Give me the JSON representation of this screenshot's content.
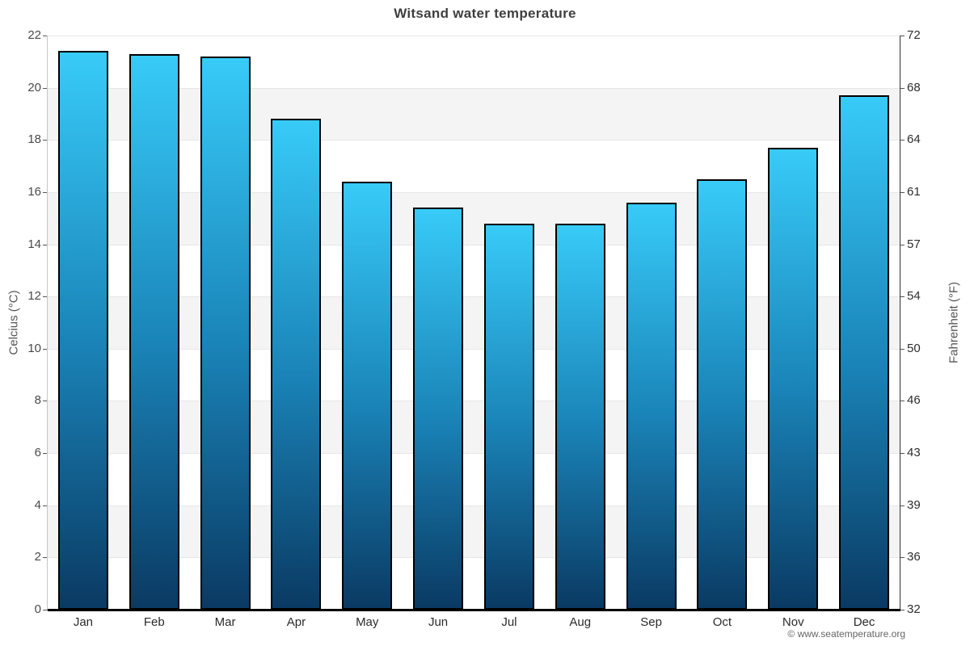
{
  "header": {
    "title": "Witsand water temperature"
  },
  "attribution": "© www.seatemperature.org",
  "chart_data": {
    "type": "bar",
    "title": "Witsand water temperature",
    "categories": [
      "Jan",
      "Feb",
      "Mar",
      "Apr",
      "May",
      "Jun",
      "Jul",
      "Aug",
      "Sep",
      "Oct",
      "Nov",
      "Dec"
    ],
    "values": [
      21.4,
      21.3,
      21.2,
      18.8,
      16.4,
      15.4,
      14.8,
      14.8,
      15.6,
      16.5,
      17.7,
      19.7
    ],
    "unit": "°C",
    "ylabel_left": "Celcius (°C)",
    "ylabel_right": "Fahrenheit (°F)",
    "xlabel": "",
    "ylim": [
      0,
      22
    ],
    "y_ticks_celsius": [
      0,
      2,
      4,
      6,
      8,
      10,
      12,
      14,
      16,
      18,
      20,
      22
    ],
    "y_ticks_fahrenheit": [
      32,
      36,
      39,
      43,
      46,
      50,
      54,
      57,
      61,
      64,
      68,
      72
    ],
    "grid": true,
    "alternating_bands": true,
    "legend": false
  },
  "colors": {
    "bar_gradient_top": "#38cbf8",
    "bar_gradient_mid": "#1a84b8",
    "bar_gradient_bottom": "#0a3a63",
    "bar_border": "#000000",
    "band_gray": "#f4f4f4",
    "gridline": "#e6e6e6",
    "axis_line_left": "#c6c6c6",
    "axis_line_right": "#333333",
    "baseline": "#000000",
    "tick_mark": "#555555"
  }
}
